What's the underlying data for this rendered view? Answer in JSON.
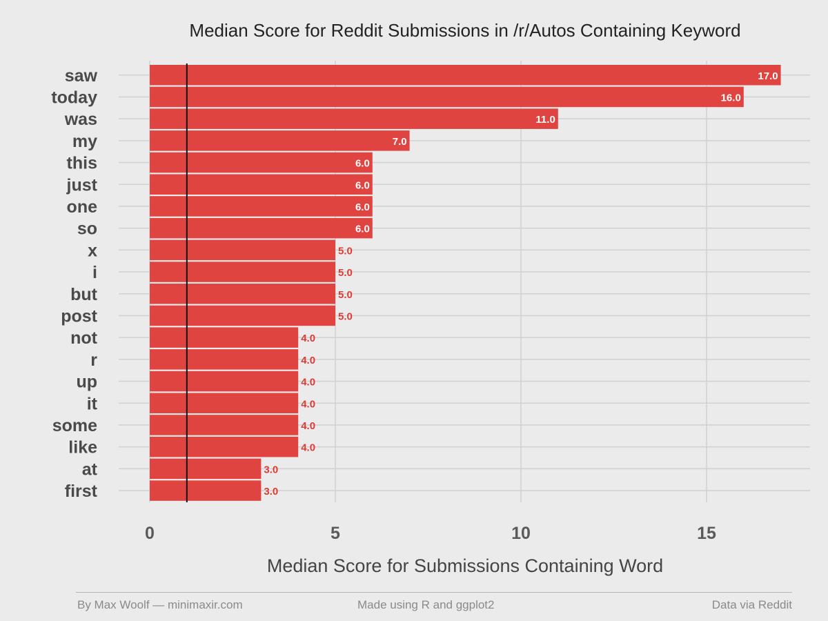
{
  "chart_data": {
    "type": "bar",
    "orientation": "horizontal",
    "title": "Median Score for Reddit Submissions in /r/Autos Containing Keyword",
    "xlabel": "Median Score for Submissions Containing Word",
    "ylabel": "",
    "categories": [
      "saw",
      "today",
      "was",
      "my",
      "this",
      "just",
      "one",
      "so",
      "x",
      "i",
      "but",
      "post",
      "not",
      "r",
      "up",
      "it",
      "some",
      "like",
      "at",
      "first"
    ],
    "values": [
      17,
      16,
      11,
      7,
      6,
      6,
      6,
      6,
      5,
      5,
      5,
      5,
      4,
      4,
      4,
      4,
      4,
      4,
      3,
      3
    ],
    "data_labels": [
      "17.0",
      "16.0",
      "11.0",
      "7.0",
      "6.0",
      "6.0",
      "6.0",
      "6.0",
      "5.0",
      "5.0",
      "5.0",
      "5.0",
      "4.0",
      "4.0",
      "4.0",
      "4.0",
      "4.0",
      "4.0",
      "3.0",
      "3.0"
    ],
    "xticks": [
      0,
      5,
      10,
      15
    ],
    "xlim": [
      0,
      18
    ],
    "reference_line": 1,
    "grid": true,
    "bar_color": "#e04441",
    "label_color": "#dd3b33"
  },
  "footer": {
    "left": "By Max Woolf — minimaxir.com",
    "middle": "Made using R and ggplot2",
    "right": "Data via Reddit"
  }
}
